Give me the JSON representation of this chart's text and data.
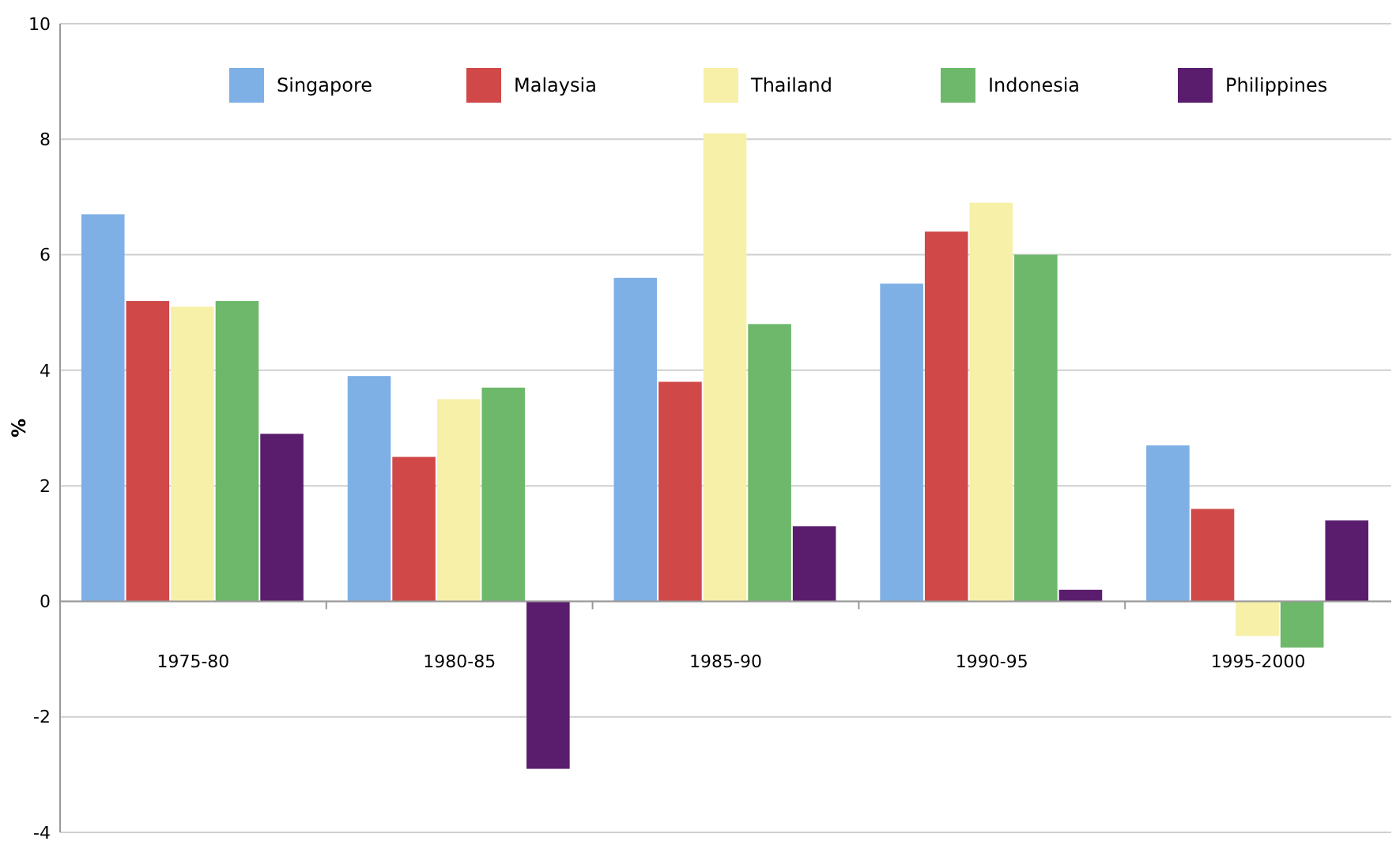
{
  "chart_data": {
    "type": "bar",
    "ylabel": "%",
    "categories": [
      "1975-80",
      "1980-85",
      "1985-90",
      "1990-95",
      "1995-2000"
    ],
    "series": [
      {
        "name": "Singapore",
        "color": "#7eb0e6",
        "values": [
          6.7,
          3.9,
          5.6,
          5.5,
          2.7
        ]
      },
      {
        "name": "Malaysia",
        "color": "#d04848",
        "values": [
          5.2,
          2.5,
          3.8,
          6.4,
          1.6
        ]
      },
      {
        "name": "Thailand",
        "color": "#f7f0a8",
        "values": [
          5.1,
          3.5,
          8.1,
          6.9,
          -0.6
        ]
      },
      {
        "name": "Indonesia",
        "color": "#6db86a",
        "values": [
          5.2,
          3.7,
          4.8,
          6.0,
          -0.8
        ]
      },
      {
        "name": "Philippines",
        "color": "#5a1d6e",
        "values": [
          2.9,
          -2.9,
          1.3,
          0.2,
          1.4
        ]
      }
    ],
    "ylim": [
      -4,
      10
    ],
    "yticks": [
      -4,
      -2,
      0,
      2,
      4,
      6,
      8,
      10
    ],
    "grid": "y",
    "legend": "top"
  }
}
